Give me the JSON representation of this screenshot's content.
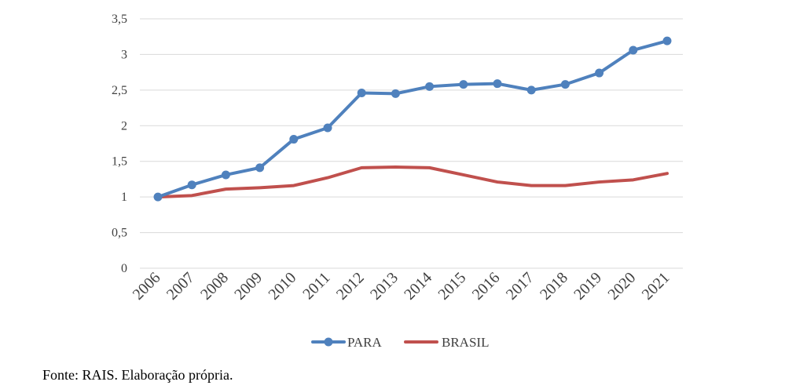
{
  "chart_data": {
    "type": "line",
    "categories": [
      "2006",
      "2007",
      "2008",
      "2009",
      "2010",
      "2011",
      "2012",
      "2013",
      "2014",
      "2015",
      "2016",
      "2017",
      "2018",
      "2019",
      "2020",
      "2021"
    ],
    "series": [
      {
        "name": "PARA",
        "color": "#4F81BD",
        "marker": "circle",
        "values": [
          1.0,
          1.17,
          1.31,
          1.41,
          1.81,
          1.97,
          2.46,
          2.45,
          2.55,
          2.58,
          2.59,
          2.5,
          2.58,
          2.74,
          3.06,
          3.19
        ]
      },
      {
        "name": "BRASIL",
        "color": "#C0504D",
        "marker": "none",
        "values": [
          1.0,
          1.02,
          1.11,
          1.13,
          1.16,
          1.27,
          1.41,
          1.42,
          1.41,
          1.31,
          1.21,
          1.16,
          1.16,
          1.21,
          1.24,
          1.33
        ]
      }
    ],
    "y_ticks": [
      "0",
      "0,5",
      "1",
      "1,5",
      "2",
      "2,5",
      "3",
      "3,5"
    ],
    "y_tick_values": [
      0,
      0.5,
      1,
      1.5,
      2,
      2.5,
      3,
      3.5
    ],
    "ylim": [
      0,
      3.5
    ],
    "grid": true,
    "legend_position": "bottom",
    "title": "",
    "xlabel": "",
    "ylabel": ""
  },
  "source_note": "Fonte: RAIS. Elaboração própria."
}
